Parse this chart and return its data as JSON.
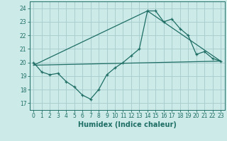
{
  "xlabel": "Humidex (Indice chaleur)",
  "bg_color": "#cceae8",
  "grid_color": "#aacfcf",
  "line_color": "#1e6e65",
  "xlim": [
    -0.5,
    23.5
  ],
  "ylim": [
    16.5,
    24.5
  ],
  "xticks": [
    0,
    1,
    2,
    3,
    4,
    5,
    6,
    7,
    8,
    9,
    10,
    11,
    12,
    13,
    14,
    15,
    16,
    17,
    18,
    19,
    20,
    21,
    22,
    23
  ],
  "yticks": [
    17,
    18,
    19,
    20,
    21,
    22,
    23,
    24
  ],
  "main_x": [
    0,
    1,
    2,
    3,
    4,
    5,
    6,
    7,
    8,
    9,
    10,
    11,
    12,
    13,
    14,
    15,
    16,
    17,
    18,
    19,
    20,
    21,
    22,
    23
  ],
  "main_y": [
    20.0,
    19.3,
    19.1,
    19.2,
    18.6,
    18.2,
    17.6,
    17.3,
    18.0,
    19.1,
    19.6,
    20.0,
    20.5,
    21.0,
    23.8,
    23.8,
    23.0,
    23.2,
    22.5,
    22.0,
    20.6,
    20.8,
    20.3,
    20.1
  ],
  "line2_x": [
    0,
    23
  ],
  "line2_y": [
    19.8,
    20.1
  ],
  "line3_x": [
    0,
    14,
    23
  ],
  "line3_y": [
    19.8,
    23.8,
    20.1
  ],
  "xlabel_fontsize": 7,
  "tick_fontsize": 5.5
}
